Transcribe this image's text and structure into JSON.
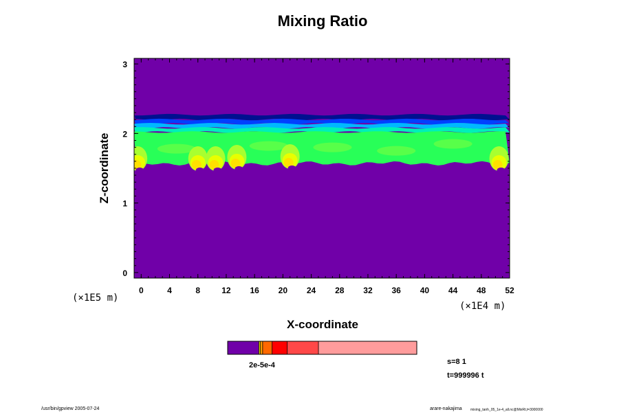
{
  "chart_data": {
    "type": "heatmap",
    "title": "Mixing Ratio",
    "xlabel": "X-coordinate",
    "ylabel": "Z-coordinate",
    "x_unit": "(×1E4 m)",
    "y_unit": "(×1E5 m)",
    "xlim": [
      -1,
      52
    ],
    "ylim": [
      -0.08,
      3.08
    ],
    "x_ticks": [
      0,
      4,
      8,
      12,
      16,
      20,
      24,
      28,
      32,
      36,
      40,
      44,
      48,
      52
    ],
    "x_tick_labels": [
      "0",
      "4",
      "8",
      "12",
      "16",
      "20",
      "24",
      "28",
      "32",
      "36",
      "40",
      "44",
      "48",
      "52"
    ],
    "y_ticks": [
      0,
      1,
      2,
      3
    ],
    "y_tick_labels": [
      "0",
      "1",
      "2",
      "3"
    ],
    "colorbar": {
      "label_text": "2e-5e-4",
      "segments": [
        {
          "color": "#7000a8",
          "fraction": 0.165
        },
        {
          "color": "#f0e000",
          "fraction": 0.008
        },
        {
          "color": "#ff9800",
          "fraction": 0.012
        },
        {
          "color": "#ff6800",
          "fraction": 0.05
        },
        {
          "color": "#ff0000",
          "fraction": 0.08
        },
        {
          "color": "#ff4848",
          "fraction": 0.165
        },
        {
          "color": "#ff9c9c",
          "fraction": 0.52
        }
      ]
    },
    "background_color": "#7000a8",
    "layer": {
      "top_z": 2.27,
      "bottom_z": 1.57,
      "bands": [
        {
          "color": "#001090",
          "top_z": 2.27,
          "bottom_z": 2.2
        },
        {
          "color": "#0040ff",
          "top_z": 2.2,
          "bottom_z": 2.14
        },
        {
          "color": "#00b8ff",
          "top_z": 2.14,
          "bottom_z": 2.08
        },
        {
          "color": "#00f0b8",
          "top_z": 2.08,
          "bottom_z": 2.02
        },
        {
          "color": "#28ff58",
          "top_z": 2.02,
          "bottom_z": 1.57
        }
      ],
      "plumes": [
        {
          "x": -0.5,
          "z": 1.5
        },
        {
          "x": 8,
          "z": 1.5
        },
        {
          "x": 10.5,
          "z": 1.5
        },
        {
          "x": 13.5,
          "z": 1.52
        },
        {
          "x": 21,
          "z": 1.53
        },
        {
          "x": 50.5,
          "z": 1.5
        }
      ]
    },
    "stats": [
      "s=8 1",
      "t=999996 t"
    ]
  },
  "footer": {
    "left": "/usr/bin/gpview 2005-07-24",
    "right_user": "arare-nakajima",
    "right_file": "mixing_tanh_05_1e-4_all.nc@MixRt,t=3000000"
  }
}
